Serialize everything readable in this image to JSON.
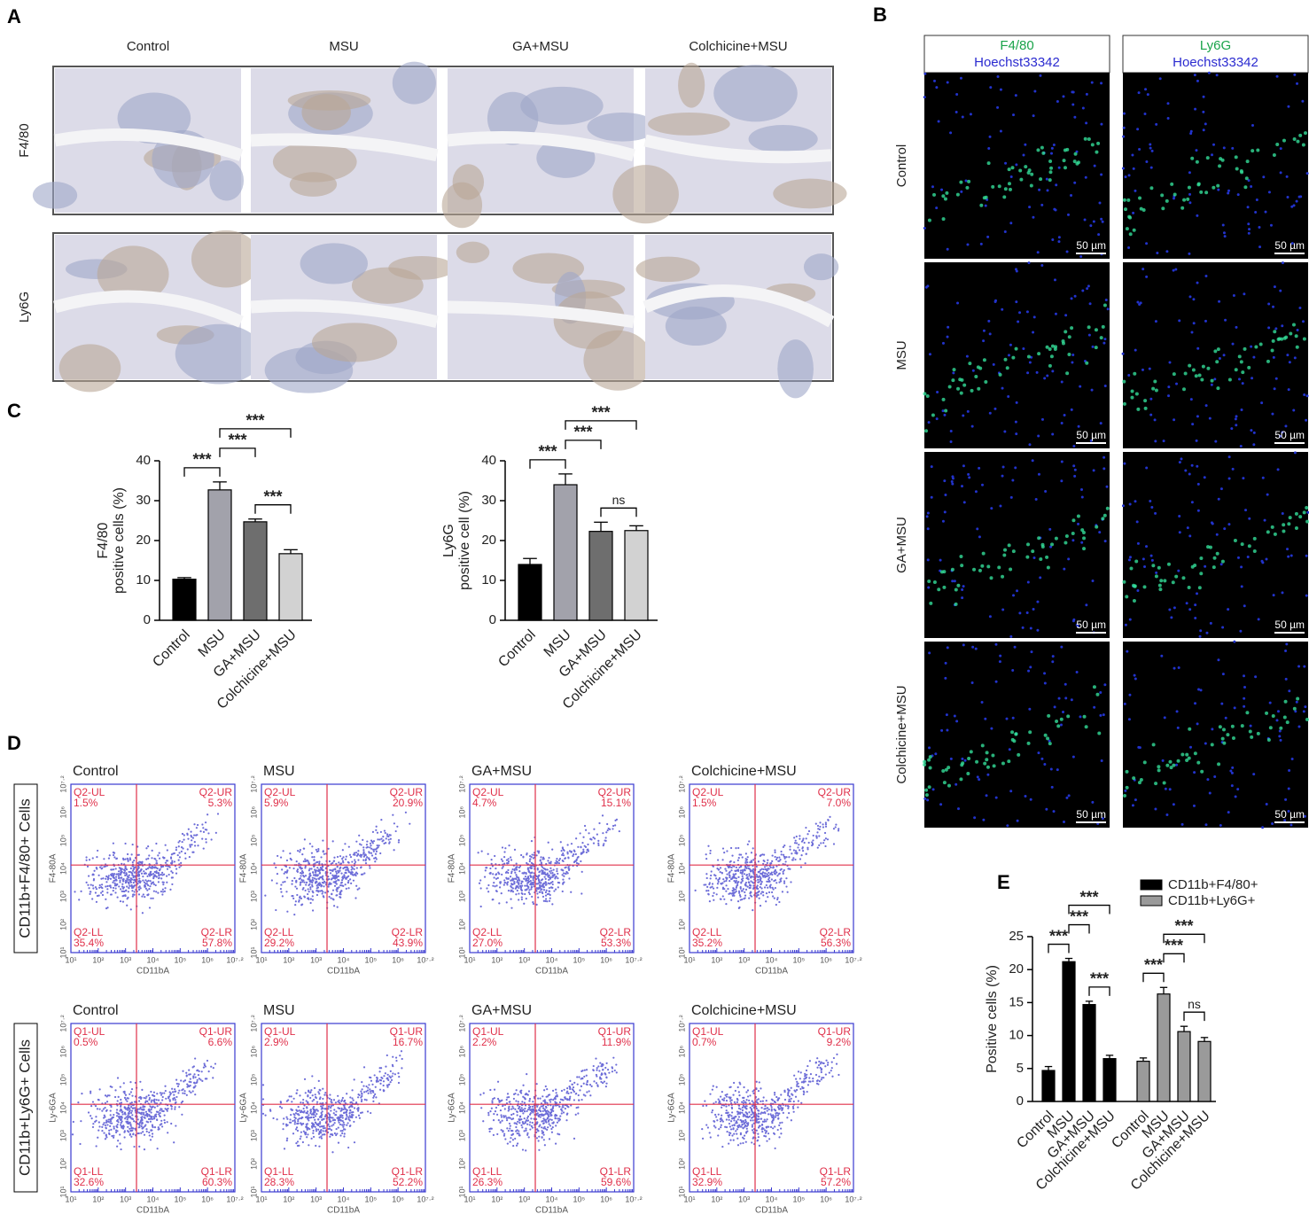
{
  "panels": {
    "A": {
      "label": "A",
      "columns": [
        "Control",
        "MSU",
        "GA+MSU",
        "Colchicine+MSU"
      ],
      "rows": [
        "F4/80",
        "Ly6G"
      ]
    },
    "B": {
      "label": "B",
      "headers": [
        {
          "marker": "F4/80",
          "stain": "Hoechst33342"
        },
        {
          "marker": "Ly6G",
          "stain": "Hoechst33342"
        }
      ],
      "rows": [
        "Control",
        "MSU",
        "GA+MSU",
        "Colchicine+MSU"
      ],
      "scale": "50 µm"
    },
    "C": {
      "label": "C"
    },
    "D": {
      "label": "D",
      "x_axis": "CD11bA",
      "ticks": [
        "10¹",
        "10²",
        "10³",
        "10⁴",
        "10⁵",
        "10⁶",
        "10⁷·²"
      ],
      "rows": [
        {
          "label": "CD11b+F4/80+ Cells",
          "y_axis": "F4-80A",
          "plots": [
            {
              "title": "Control",
              "quadrants": [
                [
                  "Q2-UL",
                  "1.5%"
                ],
                [
                  "Q2-UR",
                  "5.3%"
                ],
                [
                  "Q2-LL",
                  "35.4%"
                ],
                [
                  "Q2-LR",
                  "57.8%"
                ]
              ]
            },
            {
              "title": "MSU",
              "quadrants": [
                [
                  "Q2-UL",
                  "5.9%"
                ],
                [
                  "Q2-UR",
                  "20.9%"
                ],
                [
                  "Q2-LL",
                  "29.2%"
                ],
                [
                  "Q2-LR",
                  "43.9%"
                ]
              ]
            },
            {
              "title": "GA+MSU",
              "quadrants": [
                [
                  "Q2-UL",
                  "4.7%"
                ],
                [
                  "Q2-UR",
                  "15.1%"
                ],
                [
                  "Q2-LL",
                  "27.0%"
                ],
                [
                  "Q2-LR",
                  "53.3%"
                ]
              ]
            },
            {
              "title": "Colchicine+MSU",
              "quadrants": [
                [
                  "Q2-UL",
                  "1.5%"
                ],
                [
                  "Q2-UR",
                  "7.0%"
                ],
                [
                  "Q2-LL",
                  "35.2%"
                ],
                [
                  "Q2-LR",
                  "56.3%"
                ]
              ]
            }
          ]
        },
        {
          "label": "CD11b+Ly6G+ Cells",
          "y_axis": "Ly-6GA",
          "plots": [
            {
              "title": "Control",
              "quadrants": [
                [
                  "Q1-UL",
                  "0.5%"
                ],
                [
                  "Q1-UR",
                  "6.6%"
                ],
                [
                  "Q1-LL",
                  "32.6%"
                ],
                [
                  "Q1-LR",
                  "60.3%"
                ]
              ]
            },
            {
              "title": "MSU",
              "quadrants": [
                [
                  "Q1-UL",
                  "2.9%"
                ],
                [
                  "Q1-UR",
                  "16.7%"
                ],
                [
                  "Q1-LL",
                  "28.3%"
                ],
                [
                  "Q1-LR",
                  "52.2%"
                ]
              ]
            },
            {
              "title": "GA+MSU",
              "quadrants": [
                [
                  "Q1-UL",
                  "2.2%"
                ],
                [
                  "Q1-UR",
                  "11.9%"
                ],
                [
                  "Q1-LL",
                  "26.3%"
                ],
                [
                  "Q1-LR",
                  "59.6%"
                ]
              ]
            },
            {
              "title": "Colchicine+MSU",
              "quadrants": [
                [
                  "Q1-UL",
                  "0.7%"
                ],
                [
                  "Q1-UR",
                  "9.2%"
                ],
                [
                  "Q1-LL",
                  "32.9%"
                ],
                [
                  "Q1-LR",
                  "57.2%"
                ]
              ]
            }
          ]
        }
      ]
    },
    "E": {
      "label": "E"
    }
  },
  "chart_data": [
    {
      "type": "bar",
      "y_label": [
        "F4/80",
        "positive cells (%)"
      ],
      "categories": [
        "Control",
        "MSU",
        "GA+MSU",
        "Colchicine+MSU"
      ],
      "values": [
        10.3,
        32.7,
        24.7,
        16.7
      ],
      "errors": [
        0.4,
        2.0,
        0.7,
        1.0
      ],
      "colors": [
        "#000000",
        "#a2a2ab",
        "#6e6e6e",
        "#d2d2d2"
      ],
      "ylim": [
        0,
        40
      ],
      "yticks": [
        0,
        10,
        20,
        30,
        40
      ],
      "annotations": [
        {
          "from": 2,
          "to": 3,
          "label": "***"
        },
        {
          "from": 0,
          "to": 1,
          "label": "***"
        },
        {
          "from": 1,
          "to": 2,
          "label": "***"
        },
        {
          "from": 1,
          "to": 3,
          "label": "***"
        }
      ]
    },
    {
      "type": "bar",
      "y_label": [
        "Ly6G",
        "positive cell (%)"
      ],
      "categories": [
        "Control",
        "MSU",
        "GA+MSU",
        "Colchicine+MSU"
      ],
      "values": [
        14.0,
        34.0,
        22.3,
        22.5
      ],
      "errors": [
        1.5,
        2.7,
        2.3,
        1.2
      ],
      "colors": [
        "#000000",
        "#a2a2ab",
        "#6e6e6e",
        "#d2d2d2"
      ],
      "ylim": [
        0,
        40
      ],
      "yticks": [
        0,
        10,
        20,
        30,
        40
      ],
      "annotations": [
        {
          "from": 2,
          "to": 3,
          "label": "ns"
        },
        {
          "from": 0,
          "to": 1,
          "label": "***"
        },
        {
          "from": 1,
          "to": 2,
          "label": "***"
        },
        {
          "from": 1,
          "to": 3,
          "label": "***"
        }
      ]
    },
    {
      "type": "grouped_bar",
      "y_label": [
        "Positive cells (%)"
      ],
      "categories": [
        "Control",
        "MSU",
        "GA+MSU",
        "Colchicine+MSU"
      ],
      "series": [
        {
          "name": "CD11b+F4/80+",
          "color": "#000000",
          "values": [
            4.7,
            21.2,
            14.7,
            6.5
          ],
          "errors": [
            0.6,
            0.5,
            0.5,
            0.5
          ],
          "annotations": [
            {
              "from": 2,
              "to": 3,
              "label": "***"
            },
            {
              "from": 0,
              "to": 1,
              "label": "***"
            },
            {
              "from": 1,
              "to": 2,
              "label": "***"
            },
            {
              "from": 1,
              "to": 3,
              "label": "***"
            }
          ]
        },
        {
          "name": "CD11b+Ly6G+",
          "color": "#9a9a9a",
          "values": [
            6.1,
            16.3,
            10.6,
            9.1
          ],
          "errors": [
            0.5,
            1.0,
            0.8,
            0.6
          ],
          "annotations": [
            {
              "from": 2,
              "to": 3,
              "label": "ns"
            },
            {
              "from": 0,
              "to": 1,
              "label": "***"
            },
            {
              "from": 1,
              "to": 2,
              "label": "***"
            },
            {
              "from": 1,
              "to": 3,
              "label": "***"
            }
          ]
        }
      ],
      "ylim": [
        0,
        25
      ],
      "yticks": [
        0,
        5,
        10,
        15,
        20,
        25
      ],
      "legend": "top-right"
    }
  ]
}
